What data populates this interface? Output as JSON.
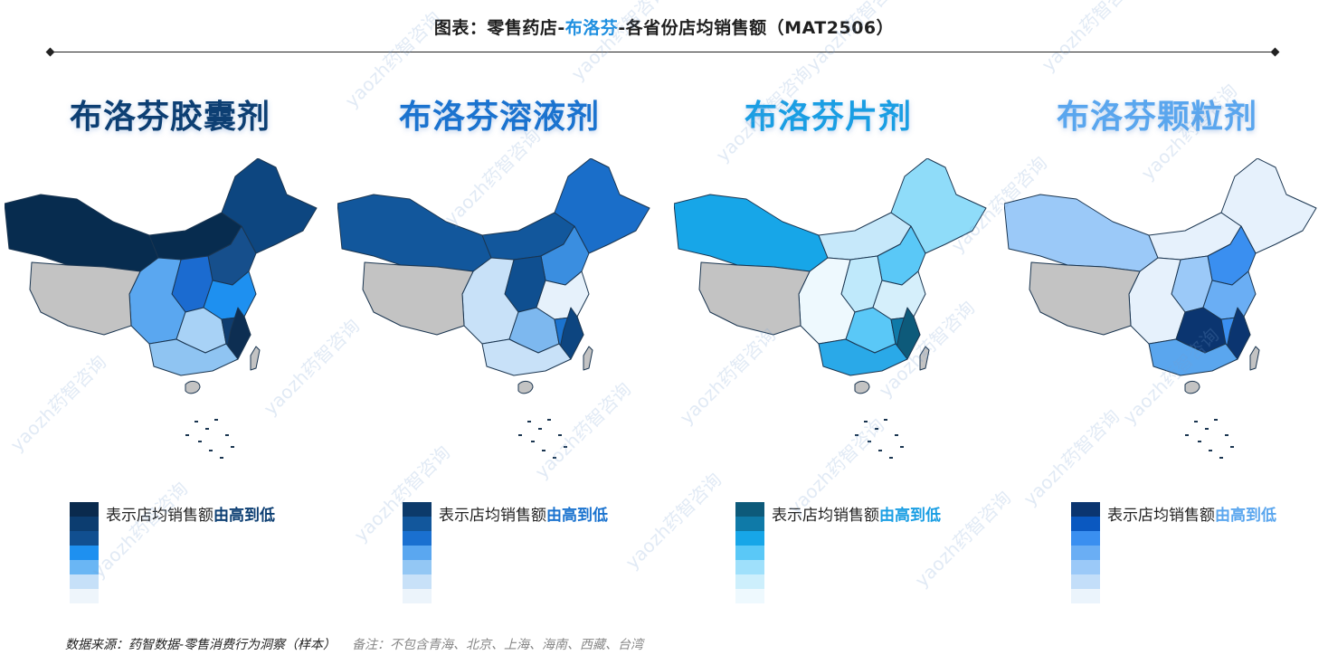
{
  "title": {
    "prefix": "图表：零售药店-",
    "highlight": "布洛芬",
    "suffix": "-各省份店均销售额（MAT2506）",
    "highlight_color": "#1e8fe0"
  },
  "legend_text": "表示店均销售额",
  "legend_emphasis": "由高到低",
  "no_data_color": "#c3c3c3",
  "panels": [
    {
      "title": "布洛芬胶囊剂",
      "title_color": "#0d3f73",
      "legend_colors": [
        "#0a2a4d",
        "#0c3d70",
        "#114f90",
        "#1e90f0",
        "#6ab6f4",
        "#c6e0f8",
        "#eef5fb"
      ],
      "region_colors": [
        "#072c4f",
        "#072c4f",
        "#0d4680",
        "#164f8c",
        "#1b6bd0",
        "#5aa7f0",
        "#1e90f0",
        "#a8d2f6",
        "#0f3d70",
        "#0d2e52",
        "#8fc4f2"
      ]
    },
    {
      "title": "布洛芬溶液剂",
      "title_color": "#1b73cf",
      "legend_colors": [
        "#0c3a6a",
        "#12579c",
        "#1a70d0",
        "#5aa7f0",
        "#93c7f4",
        "#c8e1f8",
        "#ecf4fb"
      ],
      "region_colors": [
        "#12579c",
        "#12579c",
        "#1a6ec9",
        "#3a8ee0",
        "#0f4f90",
        "#c8e1f8",
        "#e6f1fb",
        "#7db8ef",
        "#1b73cf",
        "#0d4580",
        "#c8e1f8"
      ]
    },
    {
      "title": "布洛芬片剂",
      "title_color": "#1a9ee3",
      "legend_colors": [
        "#0d5a7a",
        "#0f7aa8",
        "#17a6e8",
        "#5ac8f7",
        "#9fe0fb",
        "#cdeffc",
        "#eef9fe"
      ],
      "region_colors": [
        "#17a6e8",
        "#c6e8fa",
        "#8fdcf9",
        "#5ac8f7",
        "#bfe9fb",
        "#eef9fe",
        "#d5effb",
        "#5ac8f7",
        "#0f7aa8",
        "#0d5a7a",
        "#2aa9e8"
      ]
    },
    {
      "title": "布洛芬颗粒剂",
      "title_color": "#5aa6ee",
      "legend_colors": [
        "#0b3570",
        "#0a58c0",
        "#3a8ff0",
        "#6aaef4",
        "#9bc9f8",
        "#c3def9",
        "#ebf4fc"
      ],
      "region_colors": [
        "#9bc9f8",
        "#e6f1fc",
        "#e6f1fc",
        "#3a8ff0",
        "#9bc9f8",
        "#e6f1fc",
        "#6aaef4",
        "#0b3570",
        "#3a8ff0",
        "#0b3570",
        "#5aa6ee"
      ]
    }
  ],
  "footer": {
    "source": "数据来源：药智数据-零售消费行为洞察（样本）",
    "note": "备注：不包含青海、北京、上海、海南、西藏、台湾"
  },
  "watermark": "yaozh药智咨询"
}
